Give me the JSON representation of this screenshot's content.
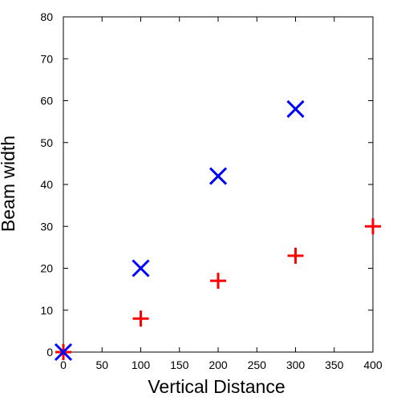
{
  "chart_data": {
    "type": "scatter",
    "title": "",
    "xlabel": "Vertical Distance",
    "ylabel": "Beam width",
    "xlim": [
      0,
      400
    ],
    "ylim": [
      0,
      80
    ],
    "xticks": [
      0,
      50,
      100,
      150,
      200,
      250,
      300,
      350,
      400
    ],
    "yticks": [
      0,
      10,
      20,
      30,
      40,
      50,
      60,
      70,
      80
    ],
    "grid": false,
    "legend": "none",
    "series": [
      {
        "marker": "cross-x",
        "color": "#0000ff",
        "x": [
          0,
          100,
          200,
          300
        ],
        "y": [
          0,
          20,
          42,
          58
        ]
      },
      {
        "marker": "plus",
        "color": "#ff0000",
        "x": [
          0,
          100,
          200,
          300,
          400
        ],
        "y": [
          0,
          8,
          17,
          23,
          30
        ]
      }
    ]
  }
}
